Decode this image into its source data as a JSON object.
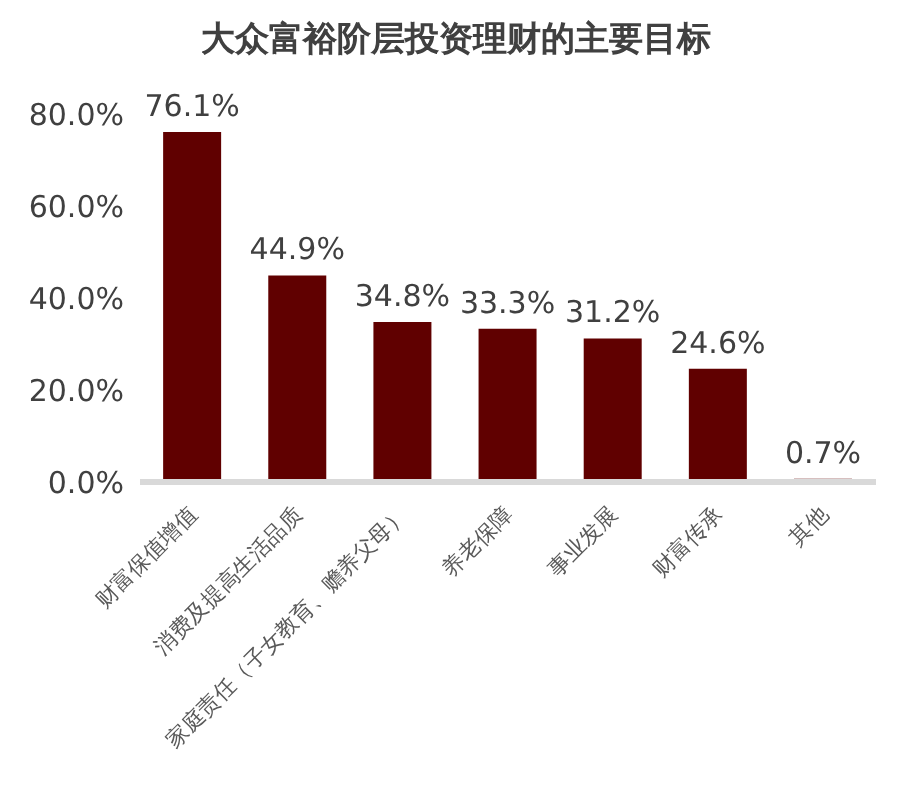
{
  "chart_data": {
    "type": "bar",
    "title": "大众富裕阶层投资理财的主要目标",
    "categories": [
      "财富保值增值",
      "消费及提高生活品质",
      "家庭责任（子女教育、赡养父母）",
      "养老保障",
      "事业发展",
      "财富传承",
      "其他"
    ],
    "values": [
      76.1,
      44.9,
      34.8,
      33.3,
      31.2,
      24.6,
      0.7
    ],
    "value_labels": [
      "76.1%",
      "44.9%",
      "34.8%",
      "33.3%",
      "31.2%",
      "24.6%",
      "0.7%"
    ],
    "color": "#600000",
    "ylim": [
      0,
      80
    ],
    "yticks": [
      {
        "value": 0,
        "label": "0.0%"
      },
      {
        "value": 20,
        "label": "20.0%"
      },
      {
        "value": 40,
        "label": "40.0%"
      },
      {
        "value": 60,
        "label": "60.0%"
      },
      {
        "value": 80,
        "label": "80.0%"
      }
    ],
    "grid": false,
    "legend": false
  }
}
